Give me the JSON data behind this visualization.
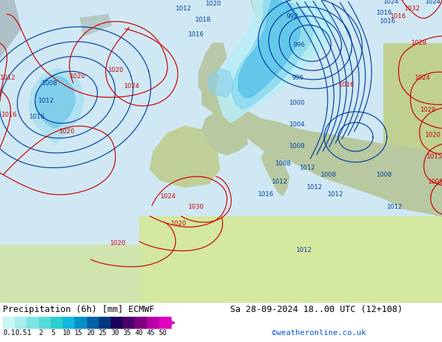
{
  "title_left": "Precipitation (6h) [mm] ECMWF",
  "title_right": "Sa 28-09-2024 18..00 UTC (12+108)",
  "credit": "©weatheronline.co.uk",
  "colorbar_labels": [
    "0.1",
    "0.5",
    "1",
    "2",
    "5",
    "10",
    "15",
    "20",
    "25",
    "30",
    "35",
    "40",
    "45",
    "50"
  ],
  "colorbar_colors": [
    "#caf5f5",
    "#a8eeee",
    "#7de4e4",
    "#56d9d9",
    "#2dcece",
    "#10b8e0",
    "#0090c8",
    "#0060a8",
    "#003880",
    "#1a005a",
    "#4a006a",
    "#800080",
    "#b800a8",
    "#e000c0"
  ],
  "ocean_color": "#c8e8f8",
  "land_north_color": "#b8d8a0",
  "land_south_color": "#d0e8a0",
  "precip_light": "#a8e4f0",
  "precip_mid": "#70c8e8",
  "precip_dark": "#4090c0",
  "footer_bg": "#ffffff",
  "text_color": "#000000",
  "title_fontsize": 9,
  "credit_color": "#0055cc",
  "credit_fontsize": 8,
  "label_fontsize": 7
}
